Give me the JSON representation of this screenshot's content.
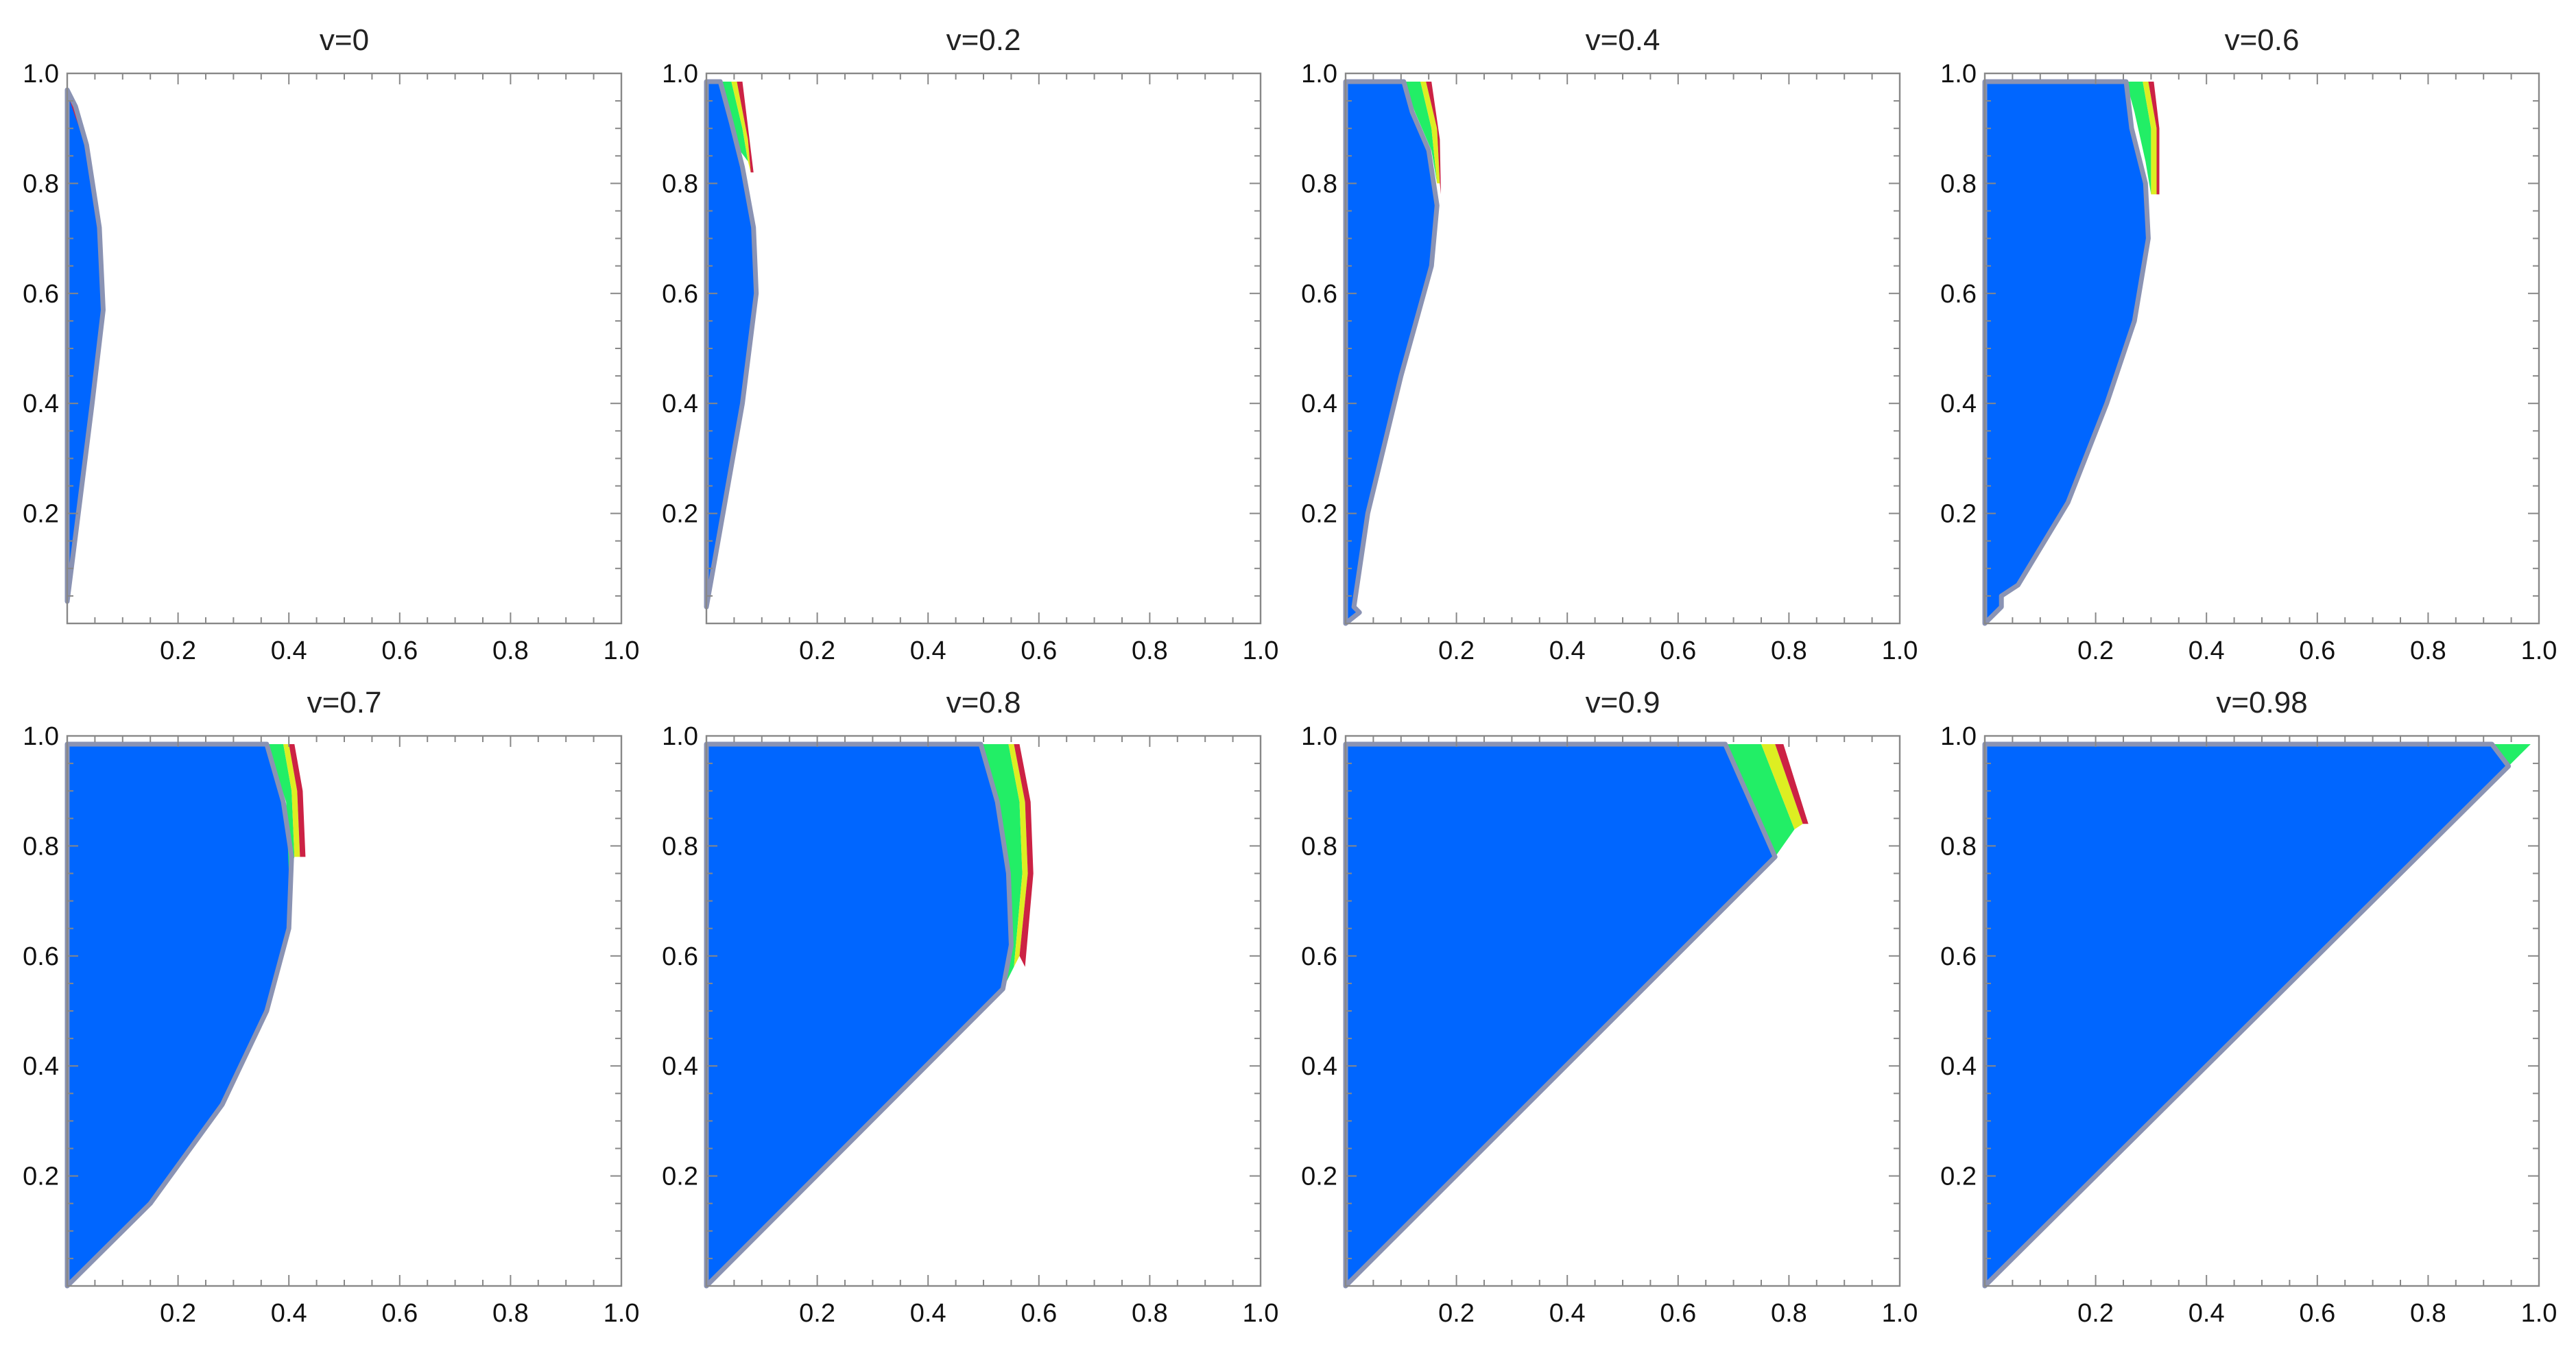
{
  "colors": {
    "blue": "#0066ff",
    "green": "#22ee66",
    "yellow": "#ddee22",
    "red": "#cc2244",
    "outline": "#8a93b4"
  },
  "chart_data": [
    {
      "type": "area",
      "title": "v=0",
      "xlim": [
        0,
        1
      ],
      "ylim": [
        0,
        1
      ],
      "xticks": [
        "0.2",
        "0.4",
        "0.6",
        "0.8",
        "1.0"
      ],
      "yticks": [
        "0.2",
        "0.4",
        "0.6",
        "0.8",
        "1.0"
      ],
      "regions": [
        {
          "color": "blue",
          "points": [
            [
              0,
              0.04
            ],
            [
              0.02,
              0.2
            ],
            [
              0.045,
              0.4
            ],
            [
              0.065,
              0.57
            ],
            [
              0.058,
              0.72
            ],
            [
              0.035,
              0.87
            ],
            [
              0.015,
              0.94
            ],
            [
              0,
              0.97
            ]
          ]
        },
        {
          "color": "red",
          "points": [
            [
              0.005,
              0.95
            ],
            [
              0.02,
              0.93
            ],
            [
              0.035,
              0.87
            ],
            [
              0.03,
              0.88
            ],
            [
              0.015,
              0.92
            ]
          ]
        }
      ]
    },
    {
      "type": "area",
      "title": "v=0.2",
      "xlim": [
        0,
        1
      ],
      "ylim": [
        0,
        1
      ],
      "xticks": [
        "0.2",
        "0.4",
        "0.6",
        "0.8",
        "1.0"
      ],
      "yticks": [
        "0.2",
        "0.4",
        "0.6",
        "0.8",
        "1.0"
      ],
      "regions": [
        {
          "color": "blue",
          "points": [
            [
              0,
              0.03
            ],
            [
              0.03,
              0.2
            ],
            [
              0.065,
              0.4
            ],
            [
              0.09,
              0.6
            ],
            [
              0.085,
              0.72
            ],
            [
              0.065,
              0.83
            ],
            [
              0.045,
              0.91
            ],
            [
              0.025,
              0.985
            ],
            [
              0,
              0.985
            ]
          ]
        },
        {
          "color": "green",
          "points": [
            [
              0.025,
              0.985
            ],
            [
              0.045,
              0.985
            ],
            [
              0.065,
              0.9
            ],
            [
              0.075,
              0.84
            ],
            [
              0.06,
              0.86
            ],
            [
              0.04,
              0.93
            ]
          ]
        },
        {
          "color": "yellow",
          "points": [
            [
              0.045,
              0.985
            ],
            [
              0.055,
              0.985
            ],
            [
              0.075,
              0.88
            ],
            [
              0.08,
              0.82
            ],
            [
              0.075,
              0.84
            ],
            [
              0.065,
              0.9
            ]
          ]
        },
        {
          "color": "red",
          "points": [
            [
              0.055,
              0.985
            ],
            [
              0.065,
              0.985
            ],
            [
              0.085,
              0.82
            ],
            [
              0.08,
              0.82
            ],
            [
              0.075,
              0.88
            ]
          ]
        }
      ]
    },
    {
      "type": "area",
      "title": "v=0.4",
      "xlim": [
        0,
        1
      ],
      "ylim": [
        0,
        1
      ],
      "xticks": [
        "0.2",
        "0.4",
        "0.6",
        "0.8",
        "1.0"
      ],
      "yticks": [
        "0.2",
        "0.4",
        "0.6",
        "0.8",
        "1.0"
      ],
      "regions": [
        {
          "color": "blue",
          "points": [
            [
              0,
              0
            ],
            [
              0.025,
              0.02
            ],
            [
              0.015,
              0.03
            ],
            [
              0.04,
              0.2
            ],
            [
              0.1,
              0.45
            ],
            [
              0.155,
              0.65
            ],
            [
              0.165,
              0.76
            ],
            [
              0.15,
              0.86
            ],
            [
              0.12,
              0.93
            ],
            [
              0.105,
              0.985
            ],
            [
              0,
              0.985
            ]
          ]
        },
        {
          "color": "green",
          "points": [
            [
              0.105,
              0.985
            ],
            [
              0.135,
              0.985
            ],
            [
              0.155,
              0.9
            ],
            [
              0.165,
              0.8
            ],
            [
              0.155,
              0.86
            ],
            [
              0.125,
              0.93
            ]
          ]
        },
        {
          "color": "yellow",
          "points": [
            [
              0.135,
              0.985
            ],
            [
              0.145,
              0.985
            ],
            [
              0.165,
              0.9
            ],
            [
              0.17,
              0.8
            ],
            [
              0.165,
              0.8
            ],
            [
              0.155,
              0.9
            ]
          ]
        },
        {
          "color": "red",
          "points": [
            [
              0.145,
              0.985
            ],
            [
              0.155,
              0.985
            ],
            [
              0.17,
              0.88
            ],
            [
              0.172,
              0.78
            ],
            [
              0.17,
              0.8
            ],
            [
              0.165,
              0.9
            ]
          ]
        }
      ]
    },
    {
      "type": "area",
      "title": "v=0.6",
      "xlim": [
        0,
        1
      ],
      "ylim": [
        0,
        1
      ],
      "xticks": [
        "0.2",
        "0.4",
        "0.6",
        "0.8",
        "1.0"
      ],
      "yticks": [
        "0.2",
        "0.4",
        "0.6",
        "0.8",
        "1.0"
      ],
      "regions": [
        {
          "color": "blue",
          "points": [
            [
              0,
              0
            ],
            [
              0.03,
              0.03
            ],
            [
              0.03,
              0.05
            ],
            [
              0.06,
              0.07
            ],
            [
              0.15,
              0.22
            ],
            [
              0.22,
              0.4
            ],
            [
              0.27,
              0.55
            ],
            [
              0.295,
              0.7
            ],
            [
              0.29,
              0.8
            ],
            [
              0.265,
              0.9
            ],
            [
              0.255,
              0.985
            ],
            [
              0,
              0.985
            ]
          ]
        },
        {
          "color": "green",
          "points": [
            [
              0.255,
              0.985
            ],
            [
              0.285,
              0.985
            ],
            [
              0.3,
              0.9
            ],
            [
              0.3,
              0.78
            ],
            [
              0.29,
              0.84
            ],
            [
              0.27,
              0.93
            ]
          ]
        },
        {
          "color": "yellow",
          "points": [
            [
              0.285,
              0.985
            ],
            [
              0.295,
              0.985
            ],
            [
              0.31,
              0.9
            ],
            [
              0.31,
              0.78
            ],
            [
              0.3,
              0.78
            ],
            [
              0.3,
              0.9
            ]
          ]
        },
        {
          "color": "red",
          "points": [
            [
              0.295,
              0.985
            ],
            [
              0.305,
              0.985
            ],
            [
              0.315,
              0.9
            ],
            [
              0.315,
              0.78
            ],
            [
              0.31,
              0.78
            ],
            [
              0.31,
              0.9
            ]
          ]
        }
      ]
    },
    {
      "type": "area",
      "title": "v=0.7",
      "xlim": [
        0,
        1
      ],
      "ylim": [
        0,
        1
      ],
      "xticks": [
        "0.2",
        "0.4",
        "0.6",
        "0.8",
        "1.0"
      ],
      "yticks": [
        "0.2",
        "0.4",
        "0.6",
        "0.8",
        "1.0"
      ],
      "regions": [
        {
          "color": "blue",
          "points": [
            [
              0,
              0
            ],
            [
              0.15,
              0.15
            ],
            [
              0.28,
              0.33
            ],
            [
              0.36,
              0.5
            ],
            [
              0.4,
              0.65
            ],
            [
              0.405,
              0.78
            ],
            [
              0.39,
              0.88
            ],
            [
              0.36,
              0.985
            ],
            [
              0,
              0.985
            ]
          ]
        },
        {
          "color": "green",
          "points": [
            [
              0.36,
              0.985
            ],
            [
              0.39,
              0.985
            ],
            [
              0.405,
              0.9
            ],
            [
              0.41,
              0.78
            ],
            [
              0.4,
              0.75
            ],
            [
              0.395,
              0.88
            ]
          ]
        },
        {
          "color": "yellow",
          "points": [
            [
              0.39,
              0.985
            ],
            [
              0.4,
              0.985
            ],
            [
              0.415,
              0.9
            ],
            [
              0.42,
              0.78
            ],
            [
              0.41,
              0.78
            ],
            [
              0.405,
              0.9
            ]
          ]
        },
        {
          "color": "red",
          "points": [
            [
              0.4,
              0.985
            ],
            [
              0.41,
              0.985
            ],
            [
              0.425,
              0.9
            ],
            [
              0.43,
              0.78
            ],
            [
              0.42,
              0.78
            ],
            [
              0.415,
              0.9
            ]
          ]
        }
      ]
    },
    {
      "type": "area",
      "title": "v=0.8",
      "xlim": [
        0,
        1
      ],
      "ylim": [
        0,
        1
      ],
      "xticks": [
        "0.2",
        "0.4",
        "0.6",
        "0.8",
        "1.0"
      ],
      "yticks": [
        "0.2",
        "0.4",
        "0.6",
        "0.8",
        "1.0"
      ],
      "regions": [
        {
          "color": "blue",
          "points": [
            [
              0,
              0
            ],
            [
              0.535,
              0.54
            ],
            [
              0.55,
              0.62
            ],
            [
              0.545,
              0.75
            ],
            [
              0.525,
              0.88
            ],
            [
              0.495,
              0.985
            ],
            [
              0,
              0.985
            ]
          ]
        },
        {
          "color": "green",
          "points": [
            [
              0.495,
              0.985
            ],
            [
              0.545,
              0.985
            ],
            [
              0.565,
              0.88
            ],
            [
              0.57,
              0.75
            ],
            [
              0.555,
              0.58
            ],
            [
              0.535,
              0.54
            ],
            [
              0.55,
              0.62
            ],
            [
              0.545,
              0.75
            ],
            [
              0.525,
              0.88
            ]
          ]
        },
        {
          "color": "yellow",
          "points": [
            [
              0.545,
              0.985
            ],
            [
              0.555,
              0.985
            ],
            [
              0.575,
              0.88
            ],
            [
              0.58,
              0.75
            ],
            [
              0.565,
              0.6
            ],
            [
              0.555,
              0.58
            ],
            [
              0.57,
              0.75
            ],
            [
              0.565,
              0.88
            ]
          ]
        },
        {
          "color": "red",
          "points": [
            [
              0.555,
              0.985
            ],
            [
              0.565,
              0.985
            ],
            [
              0.585,
              0.88
            ],
            [
              0.59,
              0.75
            ],
            [
              0.575,
              0.58
            ],
            [
              0.565,
              0.6
            ],
            [
              0.58,
              0.75
            ],
            [
              0.575,
              0.88
            ]
          ]
        }
      ]
    },
    {
      "type": "area",
      "title": "v=0.9",
      "xlim": [
        0,
        1
      ],
      "ylim": [
        0,
        1
      ],
      "xticks": [
        "0.2",
        "0.4",
        "0.6",
        "0.8",
        "1.0"
      ],
      "yticks": [
        "0.2",
        "0.4",
        "0.6",
        "0.8",
        "1.0"
      ],
      "regions": [
        {
          "color": "blue",
          "points": [
            [
              0,
              0
            ],
            [
              0.775,
              0.78
            ],
            [
              0.685,
              0.985
            ],
            [
              0,
              0.985
            ]
          ]
        },
        {
          "color": "green",
          "points": [
            [
              0.685,
              0.985
            ],
            [
              0.75,
              0.985
            ],
            [
              0.81,
              0.83
            ],
            [
              0.775,
              0.78
            ]
          ]
        },
        {
          "color": "yellow",
          "points": [
            [
              0.75,
              0.985
            ],
            [
              0.775,
              0.985
            ],
            [
              0.825,
              0.84
            ],
            [
              0.81,
              0.83
            ]
          ]
        },
        {
          "color": "red",
          "points": [
            [
              0.775,
              0.985
            ],
            [
              0.79,
              0.985
            ],
            [
              0.835,
              0.84
            ],
            [
              0.825,
              0.84
            ]
          ]
        }
      ]
    },
    {
      "type": "area",
      "title": "v=0.98",
      "xlim": [
        0,
        1
      ],
      "ylim": [
        0,
        1
      ],
      "xticks": [
        "0.2",
        "0.4",
        "0.6",
        "0.8",
        "1.0"
      ],
      "yticks": [
        "0.2",
        "0.4",
        "0.6",
        "0.8",
        "1.0"
      ],
      "regions": [
        {
          "color": "blue",
          "points": [
            [
              0,
              0
            ],
            [
              0.945,
              0.945
            ],
            [
              0.915,
              0.985
            ],
            [
              0,
              0.985
            ]
          ]
        },
        {
          "color": "green",
          "points": [
            [
              0.915,
              0.985
            ],
            [
              0.985,
              0.985
            ],
            [
              0.945,
              0.945
            ]
          ]
        }
      ]
    }
  ]
}
